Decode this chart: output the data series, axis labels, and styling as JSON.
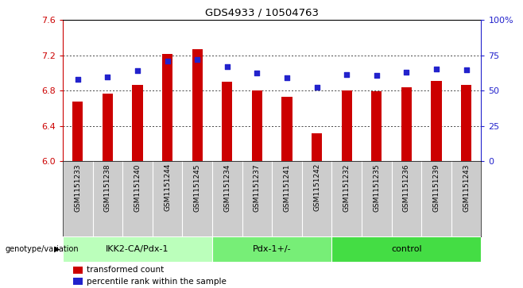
{
  "title": "GDS4933 / 10504763",
  "samples": [
    "GSM1151233",
    "GSM1151238",
    "GSM1151240",
    "GSM1151244",
    "GSM1151245",
    "GSM1151234",
    "GSM1151237",
    "GSM1151241",
    "GSM1151242",
    "GSM1151232",
    "GSM1151235",
    "GSM1151236",
    "GSM1151239",
    "GSM1151243"
  ],
  "bar_values": [
    6.68,
    6.77,
    6.87,
    7.22,
    7.27,
    6.9,
    6.8,
    6.73,
    6.32,
    6.8,
    6.79,
    6.84,
    6.91,
    6.87
  ],
  "dot_values_left": [
    6.93,
    6.96,
    7.03,
    7.14,
    7.15,
    7.07,
    7.0,
    6.95,
    6.84,
    6.98,
    6.97,
    7.01,
    7.05,
    7.04
  ],
  "bar_bottom": 6.0,
  "ylim_left": [
    6.0,
    7.6
  ],
  "ylim_right": [
    0,
    100
  ],
  "yticks_left": [
    6.0,
    6.4,
    6.8,
    7.2,
    7.6
  ],
  "yticks_right": [
    0,
    25,
    50,
    75,
    100
  ],
  "ytick_labels_right": [
    "0",
    "25",
    "50",
    "75",
    "100%"
  ],
  "bar_color": "#cc0000",
  "dot_color": "#2222cc",
  "group_labels": [
    "IKK2-CA/Pdx-1",
    "Pdx-1+/-",
    "control"
  ],
  "group_starts": [
    0,
    5,
    9
  ],
  "group_ends": [
    4,
    8,
    13
  ],
  "group_colors": [
    "#bbffbb",
    "#77ee77",
    "#44dd44"
  ],
  "legend_items": [
    {
      "color": "#cc0000",
      "label": "transformed count"
    },
    {
      "color": "#2222cc",
      "label": "percentile rank within the sample"
    }
  ],
  "genotype_label": "genotype/variation",
  "left_axis_color": "#cc0000",
  "right_axis_color": "#2222cc",
  "gridline_color": "#000000",
  "tickarea_color": "#cccccc"
}
